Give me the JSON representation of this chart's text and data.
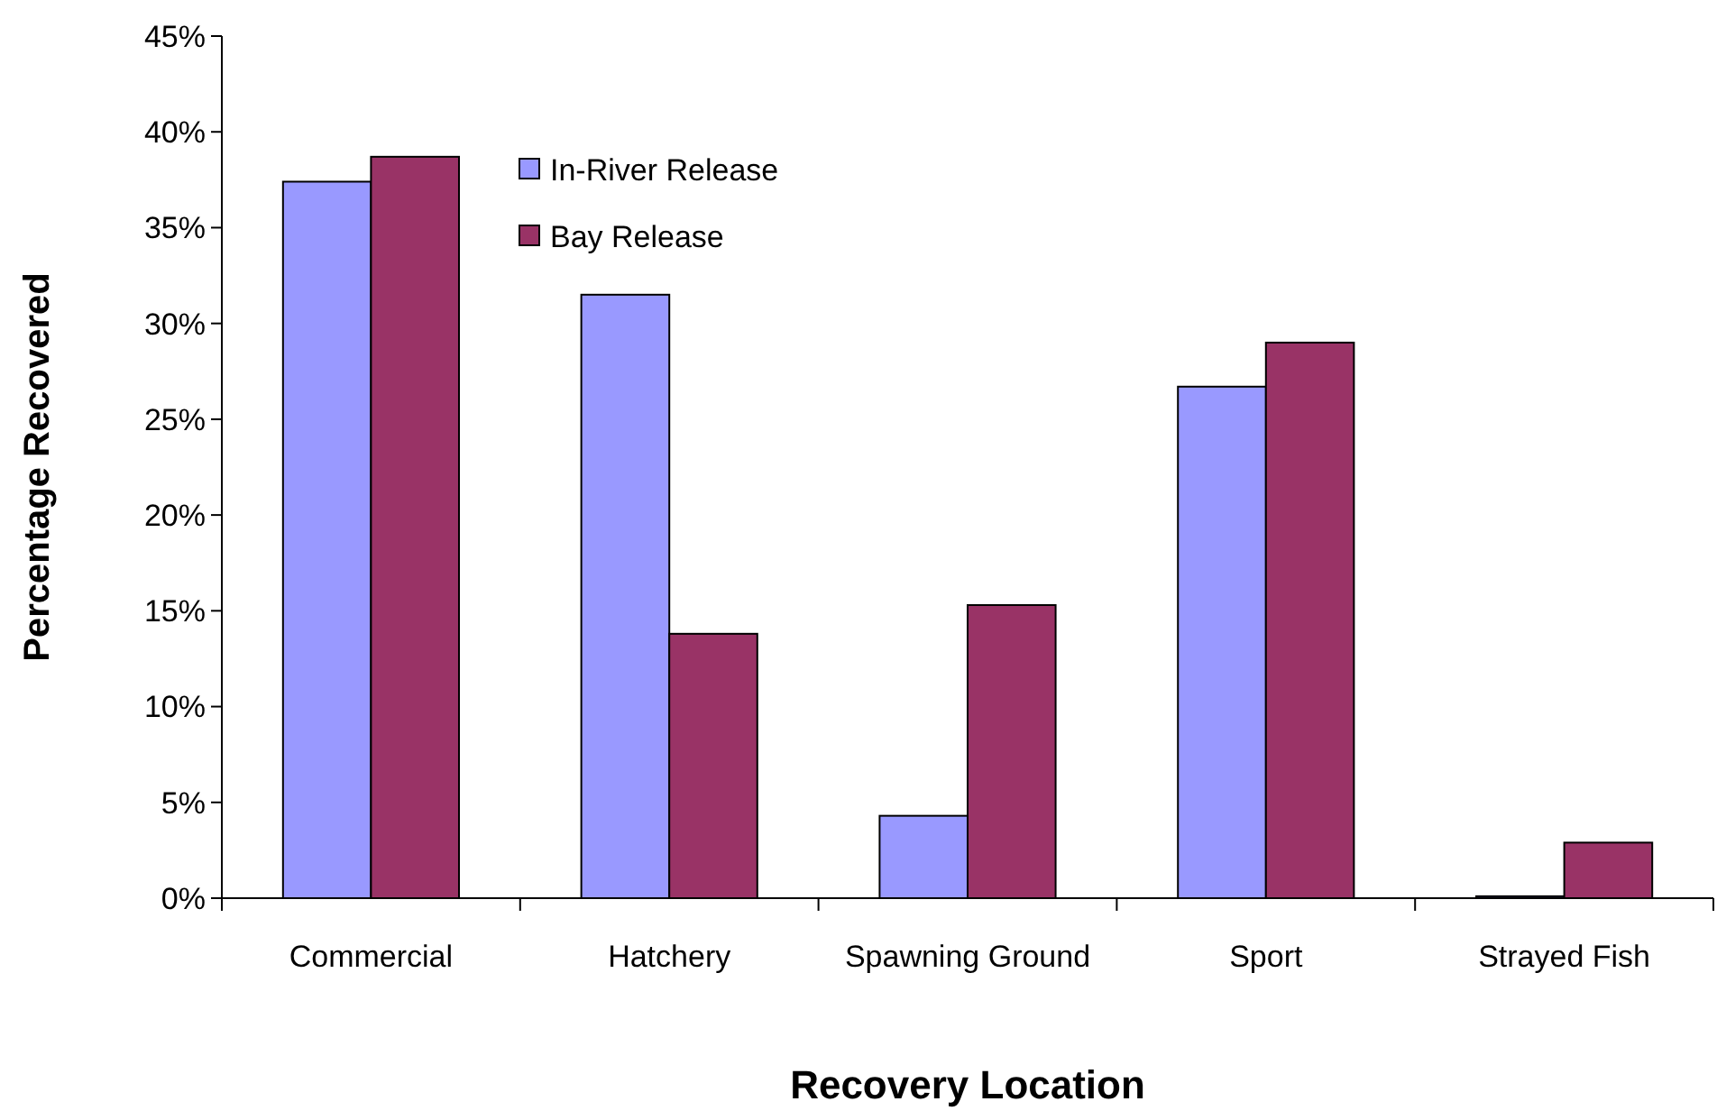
{
  "chart_data": {
    "type": "bar",
    "xlabel": "Recovery Location",
    "ylabel": "Percentage Recovered",
    "categories": [
      "Commercial",
      "Hatchery",
      "Spawning Ground",
      "Sport",
      "Strayed Fish"
    ],
    "series": [
      {
        "name": "In-River Release",
        "color": "#9999ff",
        "values": [
          37.4,
          31.5,
          4.3,
          26.7,
          0.1
        ]
      },
      {
        "name": "Bay Release",
        "color": "#993366",
        "values": [
          38.7,
          13.8,
          15.3,
          29.0,
          2.9
        ]
      }
    ],
    "ylim": [
      0,
      45
    ],
    "yticks": [
      {
        "value": 0,
        "label": "0%"
      },
      {
        "value": 5,
        "label": "5%"
      },
      {
        "value": 10,
        "label": "10%"
      },
      {
        "value": 15,
        "label": "15%"
      },
      {
        "value": 20,
        "label": "20%"
      },
      {
        "value": 25,
        "label": "25%"
      },
      {
        "value": 30,
        "label": "30%"
      },
      {
        "value": 35,
        "label": "35%"
      },
      {
        "value": 40,
        "label": "40%"
      },
      {
        "value": 45,
        "label": "45%"
      }
    ],
    "grid": false,
    "legend": "top left"
  }
}
